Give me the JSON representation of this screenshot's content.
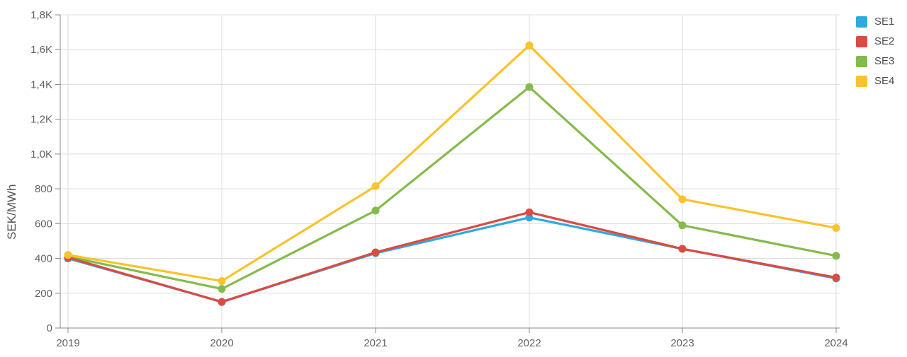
{
  "chart_data": {
    "type": "line",
    "title": "",
    "xlabel": "",
    "ylabel": "SEK/MWh",
    "x": [
      "2019",
      "2020",
      "2021",
      "2022",
      "2023",
      "2024"
    ],
    "series": [
      {
        "name": "SE1",
        "color": "#2FA9E0",
        "values": [
          400,
          150,
          430,
          635,
          455,
          285
        ]
      },
      {
        "name": "SE2",
        "color": "#DC4B42",
        "values": [
          405,
          150,
          435,
          665,
          455,
          290
        ]
      },
      {
        "name": "SE3",
        "color": "#85BB4C",
        "values": [
          410,
          225,
          675,
          1385,
          590,
          415
        ]
      },
      {
        "name": "SE4",
        "color": "#F8C32C",
        "values": [
          420,
          270,
          815,
          1625,
          740,
          575
        ]
      }
    ],
    "ylim": [
      0,
      1800
    ],
    "y_tick_step": 200,
    "y_tick_labels": [
      "0",
      "200",
      "400",
      "600",
      "800",
      "1,0K",
      "1,2K",
      "1,4K",
      "1,6K",
      "1,8K"
    ],
    "grid": true,
    "legend_position": "top-right"
  },
  "colors": {
    "grid": "#dddddd",
    "axis": "#888888",
    "tick_text": "#636363",
    "axis_title_text": "#555555",
    "legend_text": "#4a4a4a",
    "background": "#ffffff"
  }
}
